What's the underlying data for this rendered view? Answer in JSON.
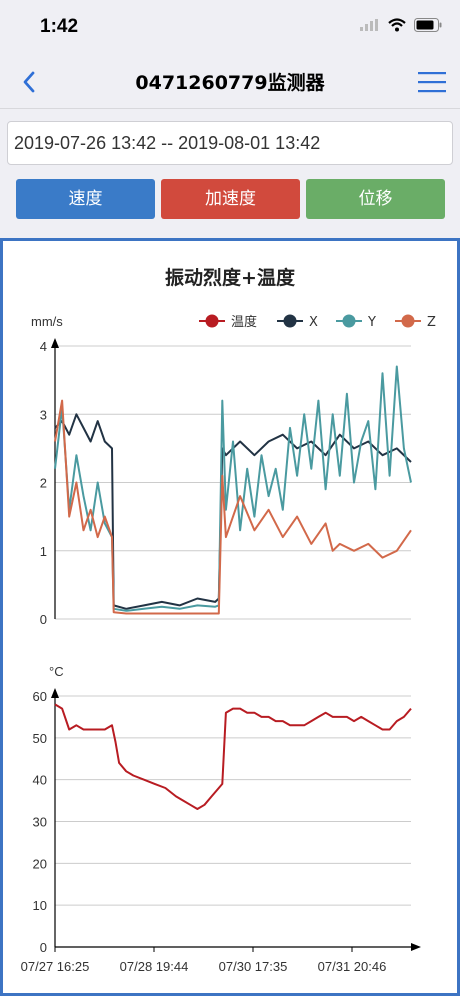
{
  "status_bar": {
    "time": "1:42"
  },
  "nav": {
    "title": "0471260779监测器",
    "back_icon": "chevron-left-icon",
    "menu_icon": "hamburger-menu-icon"
  },
  "date_range": {
    "value": "2019-07-26 13:42 -- 2019-08-01 13:42"
  },
  "buttons": [
    {
      "label": "速度",
      "color": "#3a7bc8"
    },
    {
      "label": "加速度",
      "color": "#d14a3d"
    },
    {
      "label": "位移",
      "color": "#6aad67"
    }
  ],
  "chart_data": [
    {
      "type": "line",
      "title": "振动烈度+温度",
      "ylabel": "mm/s",
      "ylim": [
        0,
        4
      ],
      "yticks": [
        "0",
        "1",
        "2",
        "3",
        "4"
      ],
      "legend": [
        {
          "name": "温度",
          "color": "#b81c22"
        },
        {
          "name": "X",
          "color": "#223344"
        },
        {
          "name": "Y",
          "color": "#4a9aa0"
        },
        {
          "name": "Z",
          "color": "#d2694a"
        }
      ],
      "x_range": [
        0,
        100
      ],
      "series": [
        {
          "name": "X",
          "color": "#223344",
          "x": [
            0,
            2,
            4,
            6,
            8,
            10,
            12,
            14,
            16,
            16.5,
            20,
            25,
            30,
            35,
            40,
            45,
            46,
            47,
            48,
            52,
            56,
            60,
            64,
            68,
            72,
            76,
            80,
            84,
            88,
            92,
            96,
            100
          ],
          "y": [
            2.8,
            2.9,
            2.7,
            3.0,
            2.8,
            2.6,
            2.9,
            2.6,
            2.5,
            0.2,
            0.15,
            0.2,
            0.25,
            0.2,
            0.3,
            0.25,
            0.3,
            2.5,
            2.4,
            2.6,
            2.4,
            2.6,
            2.7,
            2.5,
            2.6,
            2.4,
            2.7,
            2.5,
            2.6,
            2.4,
            2.5,
            2.3
          ]
        },
        {
          "name": "Y",
          "color": "#4a9aa0",
          "x": [
            0,
            2,
            4,
            6,
            8,
            10,
            12,
            14,
            16,
            16.5,
            20,
            25,
            30,
            35,
            40,
            45,
            46,
            47,
            48,
            50,
            52,
            54,
            56,
            58,
            60,
            62,
            64,
            66,
            68,
            70,
            72,
            74,
            76,
            78,
            80,
            82,
            84,
            86,
            88,
            90,
            92,
            94,
            96,
            98,
            100
          ],
          "y": [
            2.2,
            3.1,
            1.6,
            2.4,
            1.8,
            1.3,
            2.0,
            1.4,
            1.2,
            0.15,
            0.12,
            0.15,
            0.18,
            0.15,
            0.2,
            0.18,
            0.2,
            3.2,
            1.6,
            2.6,
            1.3,
            2.2,
            1.5,
            2.4,
            1.8,
            2.2,
            1.6,
            2.8,
            2.1,
            3.0,
            2.2,
            3.2,
            1.9,
            3.0,
            2.1,
            3.3,
            2.0,
            2.6,
            2.9,
            1.9,
            3.6,
            2.1,
            3.7,
            2.5,
            2.0
          ]
        },
        {
          "name": "Z",
          "color": "#d2694a",
          "x": [
            0,
            2,
            4,
            6,
            8,
            10,
            12,
            14,
            16,
            16.5,
            20,
            25,
            30,
            35,
            40,
            45,
            46,
            47,
            48,
            52,
            56,
            60,
            64,
            68,
            72,
            76,
            78,
            80,
            84,
            88,
            92,
            96,
            100
          ],
          "y": [
            2.6,
            3.2,
            1.5,
            2.0,
            1.3,
            1.6,
            1.2,
            1.5,
            1.2,
            0.1,
            0.08,
            0.08,
            0.08,
            0.08,
            0.08,
            0.08,
            0.08,
            2.1,
            1.2,
            1.8,
            1.3,
            1.6,
            1.2,
            1.5,
            1.1,
            1.4,
            1.0,
            1.1,
            1.0,
            1.1,
            0.9,
            1.0,
            1.3
          ]
        }
      ]
    },
    {
      "type": "line",
      "title": "",
      "ylabel": "°C",
      "ylim": [
        0,
        60
      ],
      "yticks": [
        "0",
        "10",
        "20",
        "30",
        "40",
        "50",
        "60"
      ],
      "categories": [
        "07/27 16:25",
        "07/28 19:44",
        "07/30 17:35",
        "07/31 20:46"
      ],
      "x_range": [
        0,
        100
      ],
      "series": [
        {
          "name": "温度",
          "color": "#b81c22",
          "x": [
            0,
            2,
            4,
            6,
            8,
            10,
            12,
            14,
            16,
            17,
            18,
            20,
            22,
            25,
            28,
            31,
            34,
            36,
            38,
            40,
            42,
            44,
            46,
            47,
            48,
            50,
            52,
            54,
            56,
            58,
            60,
            62,
            64,
            66,
            68,
            70,
            72,
            74,
            76,
            78,
            80,
            82,
            84,
            86,
            88,
            90,
            92,
            94,
            96,
            98,
            100
          ],
          "y": [
            58,
            57,
            52,
            53,
            52,
            52,
            52,
            52,
            53,
            49,
            44,
            42,
            41,
            40,
            39,
            38,
            36,
            35,
            34,
            33,
            34,
            36,
            38,
            39,
            56,
            57,
            57,
            56,
            56,
            55,
            55,
            54,
            54,
            53,
            53,
            53,
            54,
            55,
            56,
            55,
            55,
            55,
            54,
            55,
            54,
            53,
            52,
            52,
            54,
            55,
            57
          ]
        }
      ]
    }
  ]
}
